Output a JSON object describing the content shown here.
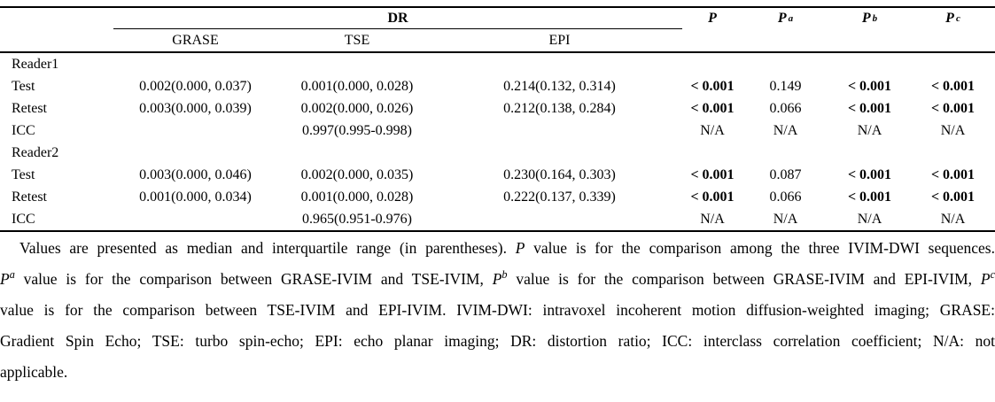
{
  "table": {
    "group_header": {
      "label": "DR",
      "columns": [
        "GRASE",
        "TSE",
        "EPI"
      ]
    },
    "p_headers": [
      {
        "base": "P",
        "sup": ""
      },
      {
        "base": "P",
        "sup": "a"
      },
      {
        "base": "P",
        "sup": "b"
      },
      {
        "base": "P",
        "sup": "c"
      }
    ],
    "rows": [
      {
        "label": "Reader1",
        "cells": [
          "",
          "",
          "",
          "",
          "",
          "",
          ""
        ]
      },
      {
        "label": "Test",
        "cells": [
          "0.002(0.000, 0.037)",
          "0.001(0.000, 0.028)",
          "0.214(0.132, 0.314)",
          "< 0.001",
          "0.149",
          "< 0.001",
          "< 0.001"
        ]
      },
      {
        "label": "Retest",
        "cells": [
          "0.003(0.000, 0.039)",
          "0.002(0.000, 0.026)",
          "0.212(0.138, 0.284)",
          "< 0.001",
          "0.066",
          "< 0.001",
          "< 0.001"
        ]
      },
      {
        "label": "ICC",
        "cells": [
          "",
          "0.997(0.995-0.998)",
          "",
          "N/A",
          "N/A",
          "N/A",
          "N/A"
        ]
      },
      {
        "label": "Reader2",
        "cells": [
          "",
          "",
          "",
          "",
          "",
          "",
          ""
        ]
      },
      {
        "label": "Test",
        "cells": [
          "0.003(0.000, 0.046)",
          "0.002(0.000, 0.035)",
          "0.230(0.164, 0.303)",
          "< 0.001",
          "0.087",
          "< 0.001",
          "< 0.001"
        ]
      },
      {
        "label": "Retest",
        "cells": [
          "0.001(0.000, 0.034)",
          "0.001(0.000, 0.028)",
          "0.222(0.137, 0.339)",
          "< 0.001",
          "0.066",
          "< 0.001",
          "< 0.001"
        ]
      },
      {
        "label": "ICC",
        "cells": [
          "",
          "0.965(0.951-0.976)",
          "",
          "N/A",
          "N/A",
          "N/A",
          "N/A"
        ]
      }
    ]
  },
  "footnote": {
    "lines": [
      {
        "indent": true,
        "justify": true,
        "segments": [
          {
            "t": "Values are presented as median and interquartile range (in parentheses). "
          },
          {
            "t": "P",
            "i": true
          },
          {
            "t": " value is for the comparison among the three IVIM-DWI sequences."
          }
        ]
      },
      {
        "justify": true,
        "segments": [
          {
            "t": "P",
            "i": true
          },
          {
            "t": "a",
            "i": true,
            "sup": true
          },
          {
            "t": " value is for the comparison between GRASE-IVIM and TSE-IVIM, "
          },
          {
            "t": "P",
            "i": true
          },
          {
            "t": "b",
            "i": true,
            "sup": true
          },
          {
            "t": " value is for the comparison between GRASE-IVIM and EPI-IVIM, "
          },
          {
            "t": "P",
            "i": true
          },
          {
            "t": "c",
            "i": true,
            "sup": true
          }
        ]
      },
      {
        "justify": true,
        "segments": [
          {
            "t": "value is for the comparison between TSE-IVIM and EPI-IVIM. IVIM-DWI: intravoxel incoherent motion diffusion-weighted imaging; GRASE:"
          }
        ]
      },
      {
        "justify": true,
        "segments": [
          {
            "t": "Gradient Spin Echo; TSE: turbo spin-echo; EPI: echo planar imaging; DR: distortion ratio; ICC: interclass correlation coefficient; N/A: not"
          }
        ]
      },
      {
        "segments": [
          {
            "t": "applicable."
          }
        ]
      }
    ]
  },
  "colors": {
    "rule": "#000000",
    "text": "#000000",
    "background": "#ffffff"
  }
}
